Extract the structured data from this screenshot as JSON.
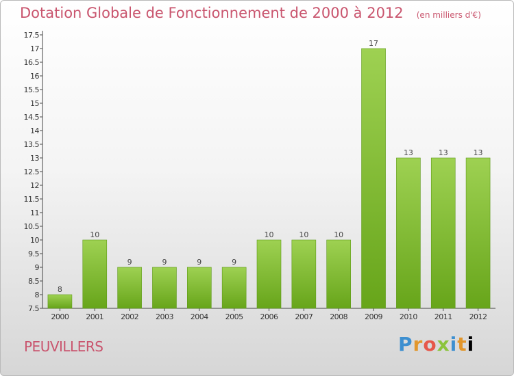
{
  "header": {
    "title": "Dotation Globale de Fonctionnement de 2000 à 2012",
    "unit": "(en milliers d'€)"
  },
  "footer": {
    "commune": "PEUVILLERS",
    "brand_letters": [
      "P",
      "r",
      "o",
      "x",
      "i",
      "t",
      "i"
    ]
  },
  "colors": {
    "bar_top": "#9ed152",
    "bar_bottom": "#67a51a",
    "title": "#c9556e"
  },
  "chart_data": {
    "type": "bar",
    "categories": [
      "2000",
      "2001",
      "2002",
      "2003",
      "2004",
      "2005",
      "2006",
      "2007",
      "2008",
      "2009",
      "2010",
      "2011",
      "2012"
    ],
    "values": [
      8,
      10,
      9,
      9,
      9,
      9,
      10,
      10,
      10,
      17,
      13,
      13,
      13
    ],
    "value_labels": [
      "8",
      "10",
      "9",
      "9",
      "9",
      "9",
      "10",
      "10",
      "10",
      "17",
      "13",
      "13",
      "13"
    ],
    "ylim": [
      7.5,
      17.5
    ],
    "yticks": [
      "7.5",
      "8",
      "8.5",
      "9",
      "9.5",
      "10",
      "10.5",
      "11",
      "11.5",
      "12",
      "12.5",
      "13",
      "13.5",
      "14",
      "14.5",
      "15",
      "15.5",
      "16",
      "16.5",
      "17",
      "17.5"
    ],
    "ytick_values": [
      7.5,
      8,
      8.5,
      9,
      9.5,
      10,
      10.5,
      11,
      11.5,
      12,
      12.5,
      13,
      13.5,
      14,
      14.5,
      15,
      15.5,
      16,
      16.5,
      17,
      17.5
    ],
    "grid": false,
    "legend": "none"
  }
}
